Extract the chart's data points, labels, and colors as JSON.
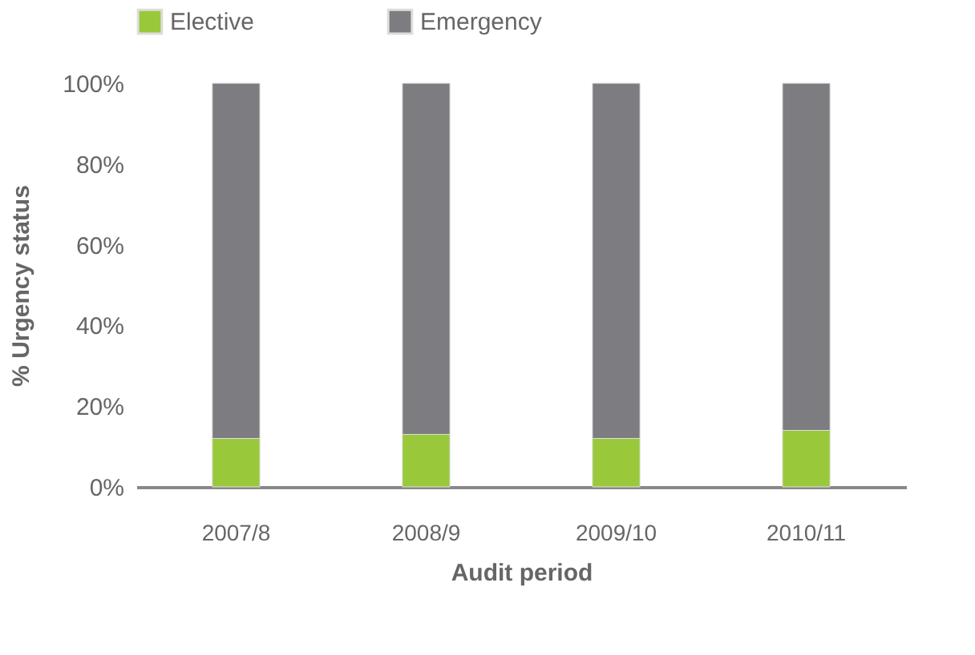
{
  "chart_data": {
    "type": "bar",
    "stacked": true,
    "xlabel": "Audit period",
    "ylabel": "% Urgency status",
    "categories": [
      "2007/8",
      "2008/9",
      "2009/10",
      "2010/11"
    ],
    "series": [
      {
        "name": "Elective",
        "color": "#99c93b",
        "values": [
          12,
          13,
          12,
          14
        ]
      },
      {
        "name": "Emergency",
        "color": "#7d7c80",
        "values": [
          88,
          87,
          88,
          86
        ]
      }
    ],
    "ylim": [
      0,
      100
    ],
    "yticks": [
      {
        "value": 0,
        "label": "0%"
      },
      {
        "value": 20,
        "label": "20%"
      },
      {
        "value": 40,
        "label": "40%"
      },
      {
        "value": 60,
        "label": "60%"
      },
      {
        "value": 80,
        "label": "80%"
      },
      {
        "value": 100,
        "label": "100%"
      }
    ],
    "grid": false,
    "legend": "top"
  }
}
